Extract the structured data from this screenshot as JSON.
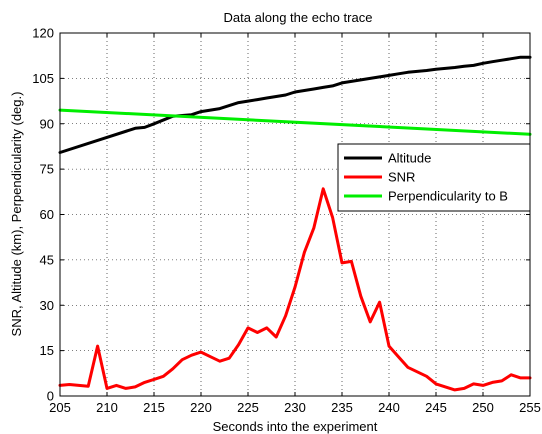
{
  "chart_data": {
    "type": "line",
    "title": "Data along the echo trace",
    "xlabel": "Seconds into the experiment",
    "ylabel": "SNR, Altitude (km), Perpendicularity (deg.)",
    "xlim": [
      205,
      255
    ],
    "ylim": [
      0,
      120
    ],
    "xticks": [
      205,
      210,
      215,
      220,
      225,
      230,
      235,
      240,
      245,
      250,
      255
    ],
    "yticks": [
      0,
      15,
      30,
      45,
      60,
      75,
      90,
      105,
      120
    ],
    "grid": "dotted",
    "legend": "right",
    "series": [
      {
        "name": "Altitude",
        "color": "#000000",
        "x": [
          205,
          213,
          214,
          215,
          217,
          219,
          220,
          221,
          222,
          224,
          225,
          226,
          227,
          228,
          229,
          230,
          231,
          232,
          233,
          234,
          235,
          236,
          237,
          238,
          239,
          240,
          241,
          242,
          243,
          244,
          245,
          246,
          247,
          248,
          249,
          250,
          251,
          252,
          253,
          254,
          255
        ],
        "y": [
          80.5,
          88.5,
          88.8,
          90,
          92.5,
          93,
          94,
          94.5,
          95,
          97,
          97.5,
          98,
          98.5,
          99,
          99.5,
          100.5,
          101,
          101.5,
          102,
          102.5,
          103.5,
          104,
          104.5,
          105,
          105.5,
          106,
          106.5,
          107,
          107.3,
          107.6,
          108,
          108.3,
          108.6,
          109,
          109.3,
          110,
          110.5,
          111,
          111.5,
          112,
          112
        ]
      },
      {
        "name": "SNR",
        "color": "#ff0000",
        "x": [
          205,
          206,
          207,
          208,
          209,
          210,
          211,
          212,
          213,
          214,
          215,
          216,
          217,
          218,
          219,
          220,
          221,
          222,
          223,
          224,
          225,
          226,
          227,
          228,
          229,
          230,
          231,
          232,
          233,
          234,
          235,
          236,
          237,
          238,
          239,
          240,
          241,
          242,
          243,
          244,
          245,
          246,
          247,
          248,
          249,
          250,
          251,
          252,
          253,
          254,
          255
        ],
        "y": [
          3.5,
          3.8,
          3.5,
          3.2,
          16.5,
          2.5,
          3.5,
          2.5,
          3,
          4.5,
          5.5,
          6.5,
          9,
          12,
          13.5,
          14.5,
          13,
          11.5,
          12.5,
          17,
          22.5,
          21,
          22.5,
          19.5,
          26.5,
          36,
          47.5,
          55.5,
          68.5,
          59,
          44,
          44.5,
          33,
          24.5,
          31,
          16.5,
          13,
          9.5,
          8,
          6.5,
          4,
          3,
          2,
          2.5,
          4,
          3.5,
          4.5,
          5,
          7,
          6,
          6
        ]
      },
      {
        "name": "Perpendicularity to B",
        "color": "#00ee00",
        "x": [
          205,
          255
        ],
        "y": [
          94.5,
          86.5
        ]
      }
    ]
  }
}
